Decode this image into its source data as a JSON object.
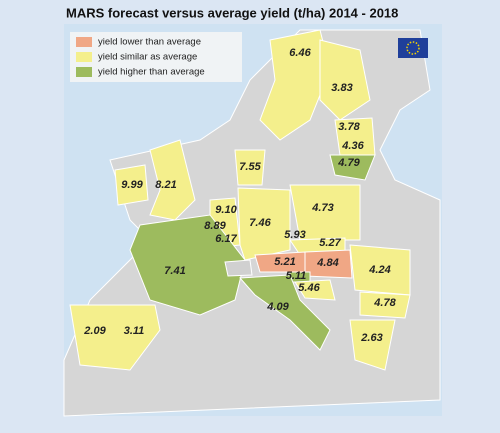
{
  "subtitle": "MARS forecast versus average yield (t/ha) 2014 - 2018",
  "legend": [
    {
      "label": "yield lower than average",
      "color": "#f0a785",
      "regions": [
        "5.21",
        "4.84"
      ]
    },
    {
      "label": "yield similar as average",
      "color": "#f4ef8c",
      "regions": [
        "6.46",
        "3.83",
        "3.78",
        "4.36",
        "7.55",
        "9.99",
        "8.21",
        "9.10",
        "4.73",
        "8.89",
        "7.46",
        "6.17",
        "5.93",
        "5.27",
        "4.24",
        "4.78",
        "2.09",
        "3.11",
        "2.63",
        "5.46"
      ]
    },
    {
      "label": "yield higher than average",
      "color": "#9dbb5e",
      "regions": [
        "4.79",
        "7.41",
        "4.09",
        "5.11"
      ]
    }
  ]
}
